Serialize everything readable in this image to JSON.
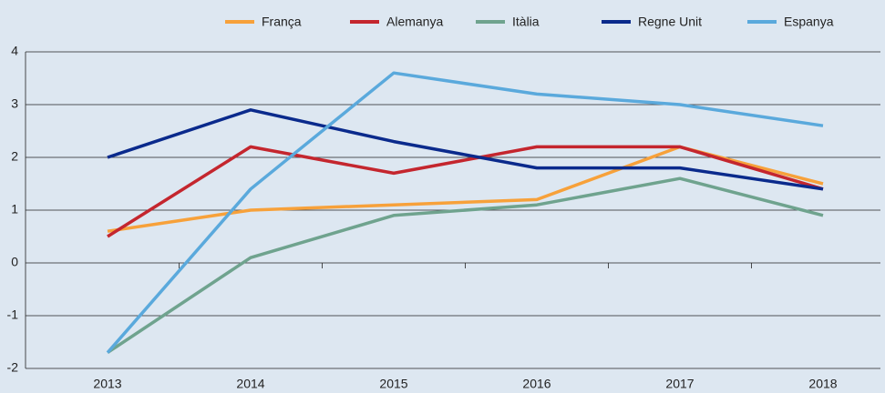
{
  "chart_data": {
    "type": "line",
    "categories": [
      "2013",
      "2014",
      "2015",
      "2016",
      "2017",
      "2018"
    ],
    "series": [
      {
        "name": "França",
        "color": "#f7a13a",
        "values": [
          0.6,
          1.0,
          1.1,
          1.2,
          2.2,
          1.5
        ]
      },
      {
        "name": "Alemanya",
        "color": "#c4262e",
        "values": [
          0.5,
          2.2,
          1.7,
          2.2,
          2.2,
          1.4
        ]
      },
      {
        "name": "Itàlia",
        "color": "#6fa38e",
        "values": [
          -1.7,
          0.1,
          0.9,
          1.1,
          1.6,
          0.9
        ]
      },
      {
        "name": "Regne Unit",
        "color": "#0a2a8c",
        "values": [
          2.0,
          2.9,
          2.3,
          1.8,
          1.8,
          1.4
        ]
      },
      {
        "name": "Espanya",
        "color": "#5aa9dc",
        "values": [
          -1.7,
          1.4,
          3.6,
          3.2,
          3.0,
          2.6
        ]
      }
    ],
    "ylim": [
      -2,
      4
    ],
    "yticks": [
      -2,
      -1,
      0,
      1,
      2,
      3,
      4
    ],
    "grid": true,
    "legend": "top"
  }
}
